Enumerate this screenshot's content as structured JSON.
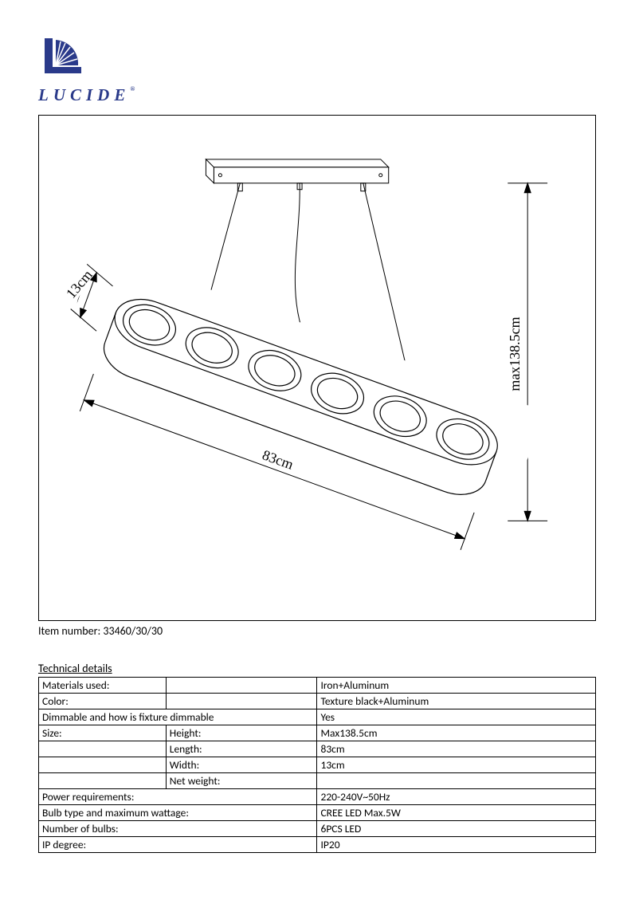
{
  "brand": {
    "name": "LUCIDE",
    "logo_color": "#2a3a8a"
  },
  "diagram": {
    "dims": {
      "depth": "13cm",
      "length": "83cm",
      "height": "max138.5cm"
    },
    "stroke": "#000000",
    "stroke_width": 1,
    "num_lamps": 6
  },
  "item_number_label": "Item number: 33460/30/30",
  "tech_title": "Technical details",
  "rows": [
    {
      "a": "Materials used:",
      "b": "",
      "c": "Iron+Aluminum"
    },
    {
      "a": "Color:",
      "b": "",
      "c": "Texture black+Aluminum"
    },
    {
      "a": "Dimmable and how is fixture dimmable",
      "b": "",
      "c": "Yes",
      "span": true
    },
    {
      "a": "Size:",
      "b": "Height:",
      "c": "Max138.5cm"
    },
    {
      "a": "",
      "b": "Length:",
      "c": "83cm"
    },
    {
      "a": "",
      "b": "Width:",
      "c": "13cm"
    },
    {
      "a": "",
      "b": "Net weight:",
      "c": ""
    },
    {
      "a": "Power requirements:",
      "b": "",
      "c": "220-240V~50Hz",
      "span": true
    },
    {
      "a": "Bulb type and maximum wattage:",
      "b": "",
      "c": "CREE LED Max.5W",
      "span": true
    },
    {
      "a": "Number of bulbs:",
      "b": "",
      "c": "6PCS  LED",
      "span": true
    },
    {
      "a": "IP degree:",
      "b": "",
      "c": "IP20",
      "span": true
    }
  ]
}
